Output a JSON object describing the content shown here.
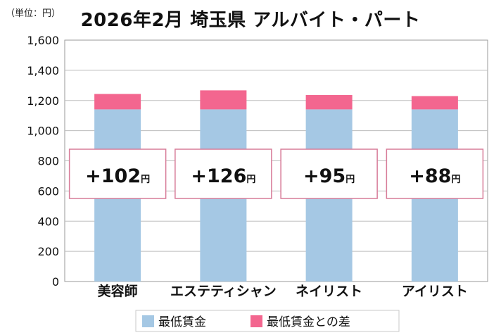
{
  "header": {
    "unit": "（単位：円）",
    "title": "2026年2月 埼玉県 アルバイト・パート"
  },
  "chart_data": {
    "type": "bar",
    "stacked": true,
    "title": "2026年2月 埼玉県 アルバイト・パート",
    "ylabel": "（単位：円）",
    "ylim": [
      0,
      1600
    ],
    "yticks": [
      "0",
      "200",
      "400",
      "600",
      "800",
      "1,000",
      "1,200",
      "1,400",
      "1,600"
    ],
    "grid": true,
    "legend_position": "bottom",
    "categories": [
      "美容師",
      "エステティシャン",
      "ネイリスト",
      "アイリスト"
    ],
    "series": [
      {
        "name": "最低賃金",
        "color": "#a5c8e4",
        "values": [
          1141,
          1141,
          1141,
          1141
        ]
      },
      {
        "name": "最低賃金との差",
        "color": "#f3668f",
        "values": [
          102,
          126,
          95,
          88
        ]
      }
    ],
    "annotations": [
      {
        "sign": "+",
        "value": "102",
        "unit": "円"
      },
      {
        "sign": "+",
        "value": "126",
        "unit": "円"
      },
      {
        "sign": "+",
        "value": "95",
        "unit": "円"
      },
      {
        "sign": "+",
        "value": "88",
        "unit": "円"
      }
    ]
  }
}
